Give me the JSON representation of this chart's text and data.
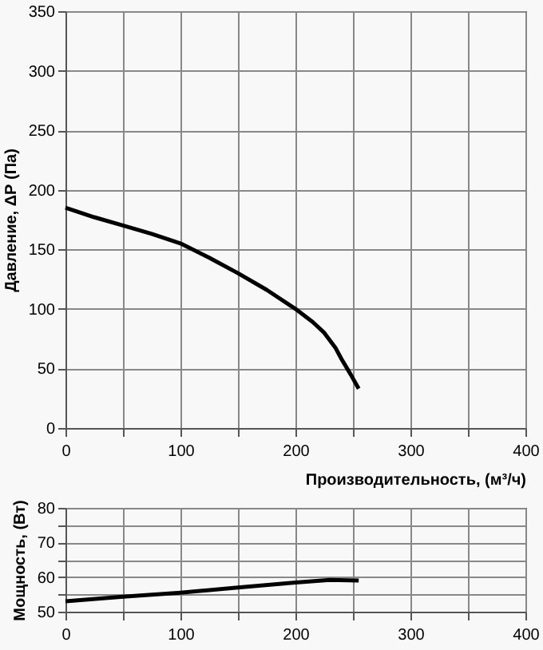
{
  "chart_data": [
    {
      "type": "line",
      "ylabel": "Давление, ΔР (Па)",
      "xlabel": "Производительность, (м³/ч)",
      "xlim": [
        0,
        400
      ],
      "ylim": [
        0,
        350
      ],
      "xticks": [
        0,
        {
          "value": 50,
          "label": null
        },
        100,
        {
          "value": 150,
          "label": null
        },
        200,
        {
          "value": 250,
          "label": null
        },
        300,
        {
          "value": 350,
          "label": null
        },
        400
      ],
      "yticks": [
        0,
        50,
        100,
        150,
        200,
        250,
        300,
        350
      ],
      "grid": true,
      "series": [
        {
          "color": "#000000",
          "x": [
            0,
            25,
            50,
            75,
            100,
            125,
            150,
            175,
            200,
            215,
            225,
            235,
            240,
            248,
            255
          ],
          "values": [
            185,
            177,
            170,
            163,
            155,
            143,
            130,
            116,
            100,
            89,
            80,
            67,
            58,
            45,
            33
          ]
        }
      ]
    },
    {
      "type": "line",
      "ylabel": "Мощность, (Вт)",
      "xlim": [
        0,
        400
      ],
      "ylim": [
        50,
        80
      ],
      "xticks": [
        0,
        {
          "value": 50,
          "label": null
        },
        100,
        {
          "value": 150,
          "label": null
        },
        200,
        {
          "value": 250,
          "label": null
        },
        300,
        {
          "value": 350,
          "label": null
        },
        400
      ],
      "yticks": [
        50,
        {
          "value": 55,
          "label": null
        },
        60,
        {
          "value": 65,
          "label": null
        },
        70,
        {
          "value": 75,
          "label": null
        },
        80
      ],
      "grid": true,
      "series": [
        {
          "color": "#000000",
          "x": [
            0,
            50,
            100,
            150,
            200,
            230,
            255
          ],
          "values": [
            53,
            54.3,
            55.5,
            57,
            58.4,
            59.2,
            59
          ]
        }
      ]
    }
  ]
}
